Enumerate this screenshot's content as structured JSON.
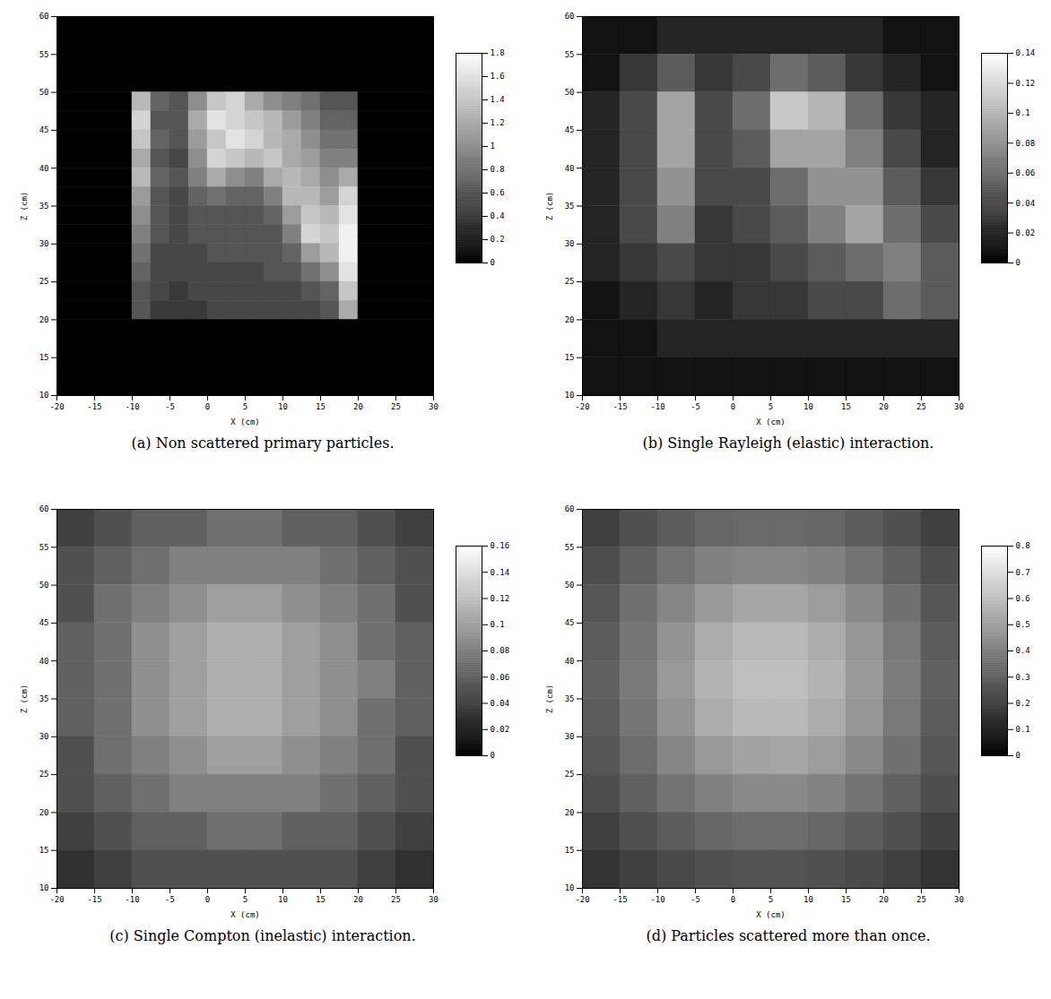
{
  "chart_data": [
    {
      "type": "heatmap",
      "title": "(a) Non scattered primary particles.",
      "x_label": "X (cm)",
      "y_label": "Z (cm)",
      "xlim": [
        -20,
        30
      ],
      "ylim": [
        10,
        60
      ],
      "xticks": [
        -20,
        -15,
        -10,
        -5,
        0,
        5,
        10,
        15,
        20,
        25,
        30
      ],
      "yticks": [
        10,
        15,
        20,
        25,
        30,
        35,
        40,
        45,
        50,
        55,
        60
      ],
      "x_edges": [
        -20,
        -10,
        -7.5,
        -5,
        -2.5,
        0,
        2.5,
        5,
        7.5,
        10,
        12.5,
        15,
        17.5,
        20,
        30
      ],
      "y_edges": [
        60,
        50,
        47.5,
        45,
        42.5,
        40,
        37.5,
        35,
        32.5,
        30,
        27.5,
        25,
        22.5,
        20,
        10
      ],
      "cells": [
        [
          0,
          0,
          0,
          0,
          0,
          0,
          0,
          0,
          0,
          0,
          0,
          0,
          0,
          0
        ],
        [
          0,
          1.3,
          0.7,
          0.6,
          1.0,
          1.4,
          1.5,
          1.2,
          1.0,
          0.9,
          0.8,
          0.6,
          0.6,
          0
        ],
        [
          0,
          1.5,
          0.6,
          0.6,
          1.2,
          1.6,
          1.5,
          1.4,
          1.3,
          1.1,
          0.9,
          0.7,
          0.7,
          0
        ],
        [
          0,
          1.4,
          0.7,
          0.6,
          1.1,
          1.4,
          1.6,
          1.5,
          1.3,
          1.2,
          1.0,
          0.8,
          0.8,
          0
        ],
        [
          0,
          1.2,
          0.6,
          0.5,
          1.0,
          1.5,
          1.4,
          1.3,
          1.4,
          1.2,
          1.1,
          0.9,
          0.9,
          0
        ],
        [
          0,
          1.3,
          0.7,
          0.6,
          0.9,
          1.2,
          1.0,
          0.9,
          1.2,
          1.3,
          1.2,
          1.0,
          1.2,
          0
        ],
        [
          0,
          1.1,
          0.6,
          0.5,
          0.7,
          0.8,
          0.7,
          0.7,
          0.9,
          1.3,
          1.3,
          1.1,
          1.5,
          0
        ],
        [
          0,
          1.0,
          0.6,
          0.5,
          0.6,
          0.6,
          0.6,
          0.6,
          0.7,
          1.1,
          1.4,
          1.3,
          1.6,
          0
        ],
        [
          0,
          0.9,
          0.6,
          0.5,
          0.6,
          0.6,
          0.6,
          0.6,
          0.6,
          0.9,
          1.5,
          1.4,
          1.7,
          0
        ],
        [
          0,
          0.8,
          0.5,
          0.5,
          0.5,
          0.6,
          0.6,
          0.6,
          0.6,
          0.7,
          1.1,
          1.3,
          1.7,
          0
        ],
        [
          0,
          0.7,
          0.5,
          0.5,
          0.5,
          0.5,
          0.5,
          0.5,
          0.6,
          0.6,
          0.8,
          1.0,
          1.6,
          0
        ],
        [
          0,
          0.6,
          0.5,
          0.4,
          0.5,
          0.5,
          0.5,
          0.5,
          0.5,
          0.5,
          0.6,
          0.7,
          1.4,
          0
        ],
        [
          0,
          0.6,
          0.4,
          0.4,
          0.4,
          0.5,
          0.5,
          0.5,
          0.5,
          0.5,
          0.5,
          0.6,
          1.2,
          0
        ],
        [
          0,
          0,
          0,
          0,
          0,
          0,
          0,
          0,
          0,
          0,
          0,
          0,
          0,
          0
        ]
      ],
      "color_range": [
        0,
        1.8
      ],
      "color_ticks": [
        0,
        0.2,
        0.4,
        0.6,
        0.8,
        1,
        1.2,
        1.4,
        1.6,
        1.8
      ]
    },
    {
      "type": "heatmap",
      "title": "(b) Single Rayleigh (elastic) interaction.",
      "x_label": "X (cm)",
      "y_label": "Z (cm)",
      "xlim": [
        -20,
        30
      ],
      "ylim": [
        10,
        60
      ],
      "xticks": [
        -20,
        -15,
        -10,
        -5,
        0,
        5,
        10,
        15,
        20,
        25,
        30
      ],
      "yticks": [
        10,
        15,
        20,
        25,
        30,
        35,
        40,
        45,
        50,
        55,
        60
      ],
      "x_edges": [
        -20,
        -15,
        -10,
        -5,
        0,
        5,
        10,
        15,
        20,
        25,
        30
      ],
      "y_edges": [
        60,
        55,
        50,
        45,
        40,
        35,
        30,
        25,
        20,
        15,
        10
      ],
      "cells": [
        [
          0.01,
          0.01,
          0.02,
          0.02,
          0.02,
          0.02,
          0.02,
          0.02,
          0.01,
          0.01
        ],
        [
          0.01,
          0.03,
          0.05,
          0.03,
          0.04,
          0.06,
          0.05,
          0.03,
          0.02,
          0.01
        ],
        [
          0.02,
          0.04,
          0.09,
          0.04,
          0.06,
          0.11,
          0.1,
          0.06,
          0.03,
          0.02
        ],
        [
          0.02,
          0.04,
          0.09,
          0.04,
          0.05,
          0.09,
          0.09,
          0.07,
          0.04,
          0.02
        ],
        [
          0.02,
          0.04,
          0.08,
          0.04,
          0.04,
          0.06,
          0.08,
          0.08,
          0.05,
          0.03
        ],
        [
          0.02,
          0.04,
          0.07,
          0.03,
          0.04,
          0.05,
          0.07,
          0.09,
          0.06,
          0.04
        ],
        [
          0.02,
          0.03,
          0.04,
          0.03,
          0.03,
          0.04,
          0.05,
          0.06,
          0.07,
          0.05
        ],
        [
          0.01,
          0.02,
          0.03,
          0.02,
          0.03,
          0.03,
          0.04,
          0.04,
          0.06,
          0.05
        ],
        [
          0.01,
          0.01,
          0.02,
          0.02,
          0.02,
          0.02,
          0.02,
          0.02,
          0.02,
          0.02
        ],
        [
          0.01,
          0.01,
          0.01,
          0.01,
          0.01,
          0.01,
          0.01,
          0.01,
          0.01,
          0.01
        ]
      ],
      "color_range": [
        0,
        0.14
      ],
      "color_ticks": [
        0,
        0.02,
        0.04,
        0.06,
        0.08,
        0.1,
        0.12,
        0.14
      ]
    },
    {
      "type": "heatmap",
      "title": "(c) Single Compton (inelastic) interaction.",
      "x_label": "X (cm)",
      "y_label": "Z (cm)",
      "xlim": [
        -20,
        30
      ],
      "ylim": [
        10,
        60
      ],
      "xticks": [
        -20,
        -15,
        -10,
        -5,
        0,
        5,
        10,
        15,
        20,
        25,
        30
      ],
      "yticks": [
        10,
        15,
        20,
        25,
        30,
        35,
        40,
        45,
        50,
        55,
        60
      ],
      "x_edges": [
        -20,
        -15,
        -10,
        -5,
        0,
        5,
        10,
        15,
        20,
        25,
        30
      ],
      "y_edges": [
        60,
        55,
        50,
        45,
        40,
        35,
        30,
        25,
        20,
        15,
        10
      ],
      "cells": [
        [
          0.04,
          0.05,
          0.06,
          0.06,
          0.07,
          0.07,
          0.06,
          0.06,
          0.05,
          0.04
        ],
        [
          0.05,
          0.06,
          0.07,
          0.08,
          0.08,
          0.08,
          0.08,
          0.07,
          0.06,
          0.05
        ],
        [
          0.05,
          0.07,
          0.08,
          0.09,
          0.1,
          0.1,
          0.09,
          0.08,
          0.07,
          0.05
        ],
        [
          0.06,
          0.07,
          0.09,
          0.1,
          0.11,
          0.11,
          0.1,
          0.09,
          0.07,
          0.06
        ],
        [
          0.06,
          0.07,
          0.09,
          0.1,
          0.11,
          0.11,
          0.1,
          0.09,
          0.08,
          0.06
        ],
        [
          0.06,
          0.07,
          0.09,
          0.1,
          0.11,
          0.11,
          0.1,
          0.09,
          0.07,
          0.06
        ],
        [
          0.05,
          0.07,
          0.08,
          0.09,
          0.1,
          0.1,
          0.09,
          0.08,
          0.07,
          0.05
        ],
        [
          0.05,
          0.06,
          0.07,
          0.08,
          0.08,
          0.08,
          0.08,
          0.07,
          0.06,
          0.05
        ],
        [
          0.04,
          0.05,
          0.06,
          0.06,
          0.07,
          0.07,
          0.06,
          0.06,
          0.05,
          0.04
        ],
        [
          0.03,
          0.04,
          0.05,
          0.05,
          0.05,
          0.05,
          0.05,
          0.05,
          0.04,
          0.03
        ]
      ],
      "color_range": [
        0,
        0.16
      ],
      "color_ticks": [
        0,
        0.02,
        0.04,
        0.06,
        0.08,
        0.1,
        0.12,
        0.14,
        0.16
      ]
    },
    {
      "type": "heatmap",
      "title": "(d) Particles scattered more than once.",
      "x_label": "X (cm)",
      "y_label": "Z (cm)",
      "xlim": [
        -20,
        30
      ],
      "ylim": [
        10,
        60
      ],
      "xticks": [
        -20,
        -15,
        -10,
        -5,
        0,
        5,
        10,
        15,
        20,
        25,
        30
      ],
      "yticks": [
        10,
        15,
        20,
        25,
        30,
        35,
        40,
        45,
        50,
        55,
        60
      ],
      "x_edges": [
        -20,
        -15,
        -10,
        -5,
        0,
        5,
        10,
        15,
        20,
        25,
        30
      ],
      "y_edges": [
        60,
        55,
        50,
        45,
        40,
        35,
        30,
        25,
        20,
        15,
        10
      ],
      "cells": [
        [
          0.2,
          0.25,
          0.29,
          0.32,
          0.33,
          0.33,
          0.32,
          0.29,
          0.25,
          0.2
        ],
        [
          0.24,
          0.3,
          0.36,
          0.4,
          0.42,
          0.42,
          0.4,
          0.36,
          0.3,
          0.24
        ],
        [
          0.27,
          0.35,
          0.42,
          0.48,
          0.52,
          0.52,
          0.49,
          0.43,
          0.35,
          0.27
        ],
        [
          0.29,
          0.37,
          0.46,
          0.54,
          0.58,
          0.58,
          0.54,
          0.47,
          0.38,
          0.29
        ],
        [
          0.3,
          0.38,
          0.48,
          0.56,
          0.6,
          0.6,
          0.56,
          0.48,
          0.39,
          0.3
        ],
        [
          0.29,
          0.37,
          0.46,
          0.54,
          0.58,
          0.58,
          0.54,
          0.47,
          0.38,
          0.29
        ],
        [
          0.27,
          0.34,
          0.42,
          0.48,
          0.51,
          0.52,
          0.49,
          0.43,
          0.35,
          0.27
        ],
        [
          0.24,
          0.3,
          0.36,
          0.4,
          0.43,
          0.43,
          0.41,
          0.36,
          0.3,
          0.24
        ],
        [
          0.2,
          0.25,
          0.29,
          0.32,
          0.34,
          0.34,
          0.32,
          0.29,
          0.25,
          0.2
        ],
        [
          0.16,
          0.2,
          0.23,
          0.25,
          0.26,
          0.26,
          0.25,
          0.23,
          0.2,
          0.16
        ]
      ],
      "color_range": [
        0,
        0.8
      ],
      "color_ticks": [
        0,
        0.1,
        0.2,
        0.3,
        0.4,
        0.5,
        0.6,
        0.7,
        0.8
      ]
    }
  ]
}
